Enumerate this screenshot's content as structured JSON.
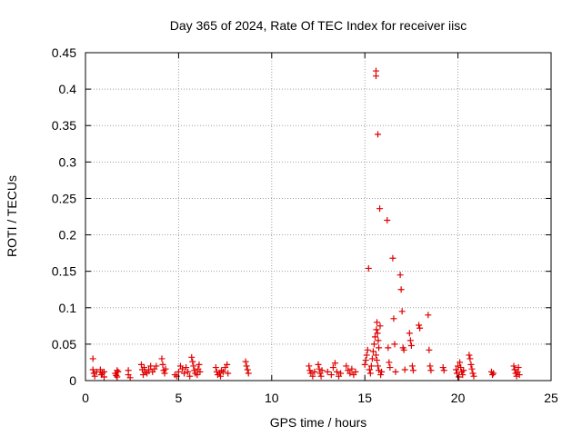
{
  "chart_data": {
    "type": "scatter",
    "title": "Day 365 of 2024, Rate Of TEC Index for receiver iisc",
    "xlabel": "GPS time / hours",
    "ylabel": "ROTI / TECUs",
    "xlim": [
      0,
      25
    ],
    "ylim": [
      0,
      0.45
    ],
    "grid": true,
    "legend": "none",
    "marker": "plus",
    "color": "#e00000",
    "x_ticks": [
      "0",
      "5",
      "10",
      "15",
      "20",
      "25"
    ],
    "y_ticks": [
      "0",
      "0.05",
      "0.1",
      "0.15",
      "0.2",
      "0.25",
      "0.3",
      "0.35",
      "0.4",
      "0.45"
    ],
    "series": [
      {
        "name": "iisc",
        "points": [
          [
            0.4,
            0.03
          ],
          [
            0.4,
            0.015
          ],
          [
            0.45,
            0.01
          ],
          [
            0.5,
            0.006
          ],
          [
            0.6,
            0.012
          ],
          [
            0.8,
            0.015
          ],
          [
            0.85,
            0.008
          ],
          [
            0.9,
            0.01
          ],
          [
            1.0,
            0.005
          ],
          [
            1.0,
            0.012
          ],
          [
            1.6,
            0.01
          ],
          [
            1.65,
            0.007
          ],
          [
            1.7,
            0.014
          ],
          [
            1.75,
            0.012
          ],
          [
            1.7,
            0.005
          ],
          [
            2.3,
            0.008
          ],
          [
            2.3,
            0.014
          ],
          [
            2.4,
            0.004
          ],
          [
            3.0,
            0.022
          ],
          [
            3.05,
            0.015
          ],
          [
            3.1,
            0.008
          ],
          [
            3.15,
            0.018
          ],
          [
            3.2,
            0.012
          ],
          [
            3.3,
            0.01
          ],
          [
            3.4,
            0.015
          ],
          [
            3.5,
            0.02
          ],
          [
            3.6,
            0.012
          ],
          [
            3.7,
            0.016
          ],
          [
            3.8,
            0.02
          ],
          [
            4.1,
            0.03
          ],
          [
            4.15,
            0.022
          ],
          [
            4.2,
            0.014
          ],
          [
            4.25,
            0.01
          ],
          [
            4.3,
            0.016
          ],
          [
            4.8,
            0.008
          ],
          [
            4.9,
            0.006
          ],
          [
            5.0,
            0.012
          ],
          [
            5.1,
            0.02
          ],
          [
            5.2,
            0.016
          ],
          [
            5.3,
            0.01
          ],
          [
            5.4,
            0.018
          ],
          [
            5.5,
            0.012
          ],
          [
            5.6,
            0.006
          ],
          [
            5.7,
            0.032
          ],
          [
            5.75,
            0.026
          ],
          [
            5.8,
            0.02
          ],
          [
            5.85,
            0.014
          ],
          [
            5.9,
            0.01
          ],
          [
            6.0,
            0.008
          ],
          [
            6.05,
            0.016
          ],
          [
            6.1,
            0.022
          ],
          [
            6.15,
            0.012
          ],
          [
            7.0,
            0.018
          ],
          [
            7.05,
            0.012
          ],
          [
            7.1,
            0.008
          ],
          [
            7.2,
            0.01
          ],
          [
            7.25,
            0.006
          ],
          [
            7.3,
            0.014
          ],
          [
            7.4,
            0.012
          ],
          [
            7.5,
            0.018
          ],
          [
            7.6,
            0.022
          ],
          [
            7.65,
            0.01
          ],
          [
            8.6,
            0.026
          ],
          [
            8.65,
            0.02
          ],
          [
            8.7,
            0.015
          ],
          [
            8.75,
            0.01
          ],
          [
            12.0,
            0.02
          ],
          [
            12.05,
            0.014
          ],
          [
            12.1,
            0.01
          ],
          [
            12.2,
            0.006
          ],
          [
            12.3,
            0.012
          ],
          [
            12.5,
            0.022
          ],
          [
            12.55,
            0.016
          ],
          [
            12.6,
            0.01
          ],
          [
            12.65,
            0.006
          ],
          [
            12.7,
            0.014
          ],
          [
            13.0,
            0.012
          ],
          [
            13.2,
            0.008
          ],
          [
            13.3,
            0.018
          ],
          [
            13.4,
            0.024
          ],
          [
            13.5,
            0.012
          ],
          [
            13.6,
            0.006
          ],
          [
            13.7,
            0.01
          ],
          [
            14.0,
            0.02
          ],
          [
            14.1,
            0.014
          ],
          [
            14.2,
            0.01
          ],
          [
            14.3,
            0.016
          ],
          [
            14.4,
            0.008
          ],
          [
            14.5,
            0.012
          ],
          [
            15.0,
            0.022
          ],
          [
            15.05,
            0.028
          ],
          [
            15.1,
            0.035
          ],
          [
            15.15,
            0.042
          ],
          [
            15.2,
            0.154
          ],
          [
            15.25,
            0.015
          ],
          [
            15.3,
            0.01
          ],
          [
            15.35,
            0.02
          ],
          [
            15.4,
            0.03
          ],
          [
            15.45,
            0.04
          ],
          [
            15.5,
            0.05
          ],
          [
            15.55,
            0.06
          ],
          [
            15.6,
            0.425
          ],
          [
            15.6,
            0.418
          ],
          [
            15.62,
            0.07
          ],
          [
            15.65,
            0.08
          ],
          [
            15.68,
            0.065
          ],
          [
            15.7,
            0.338
          ],
          [
            15.72,
            0.055
          ],
          [
            15.75,
            0.045
          ],
          [
            15.6,
            0.035
          ],
          [
            15.65,
            0.028
          ],
          [
            15.7,
            0.02
          ],
          [
            15.75,
            0.014
          ],
          [
            15.8,
            0.236
          ],
          [
            15.82,
            0.075
          ],
          [
            15.85,
            0.008
          ],
          [
            15.9,
            0.012
          ],
          [
            16.2,
            0.22
          ],
          [
            16.25,
            0.045
          ],
          [
            16.3,
            0.025
          ],
          [
            16.35,
            0.018
          ],
          [
            16.5,
            0.168
          ],
          [
            16.55,
            0.085
          ],
          [
            16.6,
            0.05
          ],
          [
            16.65,
            0.012
          ],
          [
            16.9,
            0.145
          ],
          [
            16.95,
            0.125
          ],
          [
            17.0,
            0.095
          ],
          [
            17.05,
            0.045
          ],
          [
            17.1,
            0.042
          ],
          [
            17.15,
            0.015
          ],
          [
            17.4,
            0.065
          ],
          [
            17.45,
            0.055
          ],
          [
            17.5,
            0.048
          ],
          [
            17.55,
            0.02
          ],
          [
            17.6,
            0.014
          ],
          [
            17.9,
            0.076
          ],
          [
            17.95,
            0.072
          ],
          [
            18.4,
            0.09
          ],
          [
            18.45,
            0.042
          ],
          [
            18.5,
            0.02
          ],
          [
            18.55,
            0.014
          ],
          [
            19.2,
            0.018
          ],
          [
            19.25,
            0.014
          ],
          [
            19.9,
            0.015
          ],
          [
            19.95,
            0.01
          ],
          [
            20.0,
            0.02
          ],
          [
            20.05,
            0.005
          ],
          [
            20.1,
            0.025
          ],
          [
            20.15,
            0.018
          ],
          [
            20.2,
            0.012
          ],
          [
            20.25,
            0.008
          ],
          [
            20.3,
            0.014
          ],
          [
            20.6,
            0.035
          ],
          [
            20.65,
            0.03
          ],
          [
            20.7,
            0.022
          ],
          [
            20.75,
            0.016
          ],
          [
            20.8,
            0.01
          ],
          [
            20.85,
            0.006
          ],
          [
            21.8,
            0.012
          ],
          [
            21.85,
            0.008
          ],
          [
            21.9,
            0.01
          ],
          [
            23.0,
            0.02
          ],
          [
            23.05,
            0.015
          ],
          [
            23.1,
            0.01
          ],
          [
            23.15,
            0.006
          ],
          [
            23.2,
            0.012
          ],
          [
            23.25,
            0.018
          ],
          [
            23.3,
            0.008
          ]
        ]
      }
    ]
  }
}
